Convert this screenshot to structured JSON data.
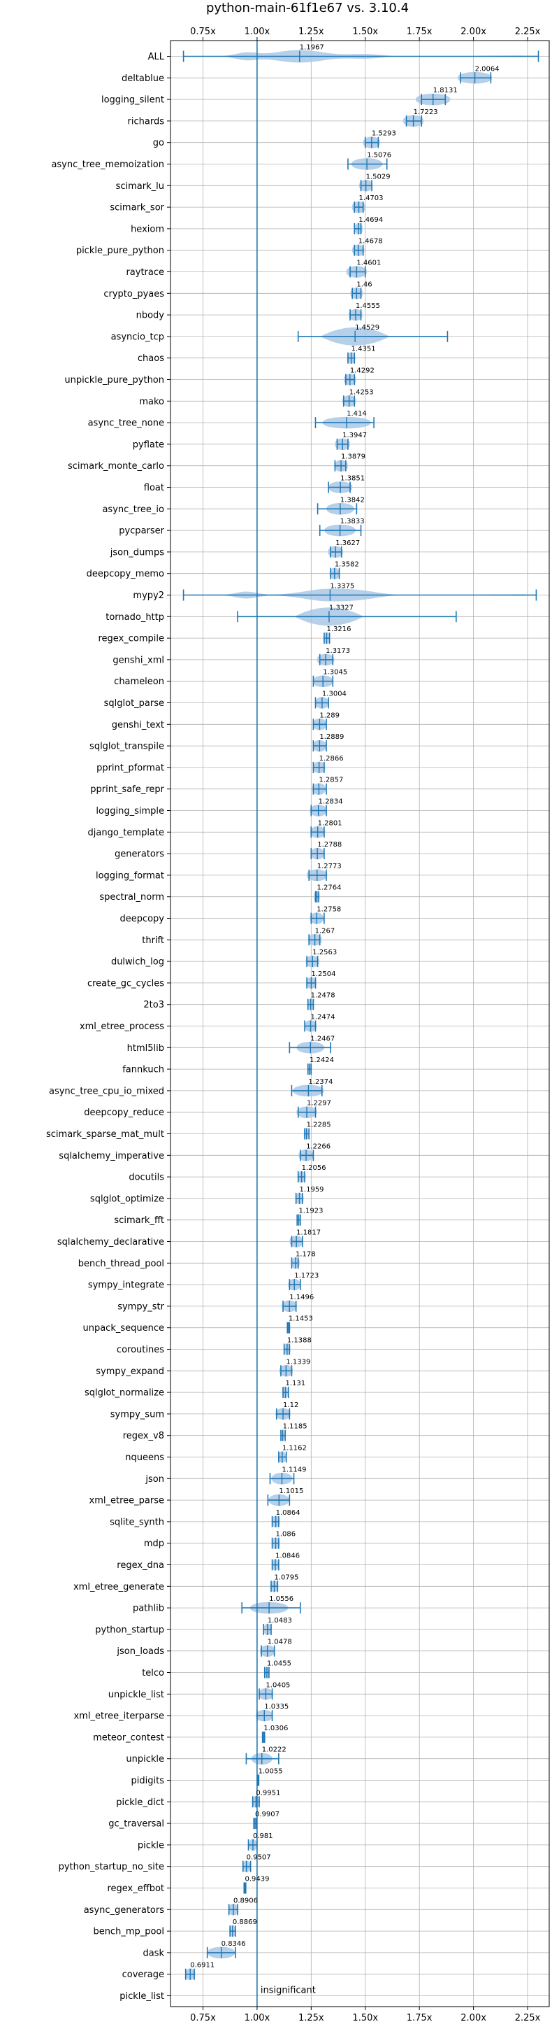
{
  "chart_data": {
    "type": "violin",
    "title": "python-main-61f1e67 vs. 3.10.4",
    "xlabel": "",
    "ylabel": "",
    "xlim": [
      0.6,
      2.35
    ],
    "xticks": [
      0.75,
      1.0,
      1.25,
      1.5,
      1.75,
      2.0,
      2.25
    ],
    "xtick_labels": [
      "0.75x",
      "1.00x",
      "1.25x",
      "1.50x",
      "1.75x",
      "2.00x",
      "2.25x"
    ],
    "reference_line": 1.0,
    "grid": true,
    "colors": {
      "line": "#1f77b4",
      "fill": "#a9c8e6",
      "grid": "#b0b0b0"
    },
    "rows": [
      {
        "name": "ALL",
        "value": 1.1967,
        "min": 0.66,
        "max": 2.3,
        "spread": "dist"
      },
      {
        "name": "deltablue",
        "value": 2.0064,
        "min": 1.94,
        "max": 2.08,
        "spread": 0.05
      },
      {
        "name": "logging_silent",
        "value": 1.8131,
        "min": 1.76,
        "max": 1.87,
        "spread": 0.05
      },
      {
        "name": "richards",
        "value": 1.7223,
        "min": 1.69,
        "max": 1.76,
        "spread": 0.03
      },
      {
        "name": "go",
        "value": 1.5293,
        "min": 1.5,
        "max": 1.56,
        "spread": 0.025
      },
      {
        "name": "async_tree_memoization",
        "value": 1.5076,
        "min": 1.42,
        "max": 1.6,
        "spread": 0.045
      },
      {
        "name": "scimark_lu",
        "value": 1.5029,
        "min": 1.48,
        "max": 1.53,
        "spread": 0.02
      },
      {
        "name": "scimark_sor",
        "value": 1.4703,
        "min": 1.45,
        "max": 1.49,
        "spread": 0.02
      },
      {
        "name": "hexiom",
        "value": 1.4694,
        "min": 1.45,
        "max": 1.48,
        "spread": 0.012
      },
      {
        "name": "pickle_pure_python",
        "value": 1.4678,
        "min": 1.45,
        "max": 1.49,
        "spread": 0.018
      },
      {
        "name": "raytrace",
        "value": 1.4601,
        "min": 1.43,
        "max": 1.5,
        "spread": 0.03
      },
      {
        "name": "crypto_pyaes",
        "value": 1.46,
        "min": 1.44,
        "max": 1.48,
        "spread": 0.018
      },
      {
        "name": "nbody",
        "value": 1.4555,
        "min": 1.43,
        "max": 1.48,
        "spread": 0.02
      },
      {
        "name": "asyncio_tcp",
        "value": 1.4529,
        "min": 1.19,
        "max": 1.88,
        "spread": "wide"
      },
      {
        "name": "chaos",
        "value": 1.4351,
        "min": 1.42,
        "max": 1.45,
        "spread": 0.012
      },
      {
        "name": "unpickle_pure_python",
        "value": 1.4292,
        "min": 1.41,
        "max": 1.45,
        "spread": 0.018
      },
      {
        "name": "mako",
        "value": 1.4253,
        "min": 1.4,
        "max": 1.45,
        "spread": 0.02
      },
      {
        "name": "async_tree_none",
        "value": 1.414,
        "min": 1.27,
        "max": 1.54,
        "spread": 0.07
      },
      {
        "name": "pyflate",
        "value": 1.3947,
        "min": 1.37,
        "max": 1.42,
        "spread": 0.022
      },
      {
        "name": "scimark_monte_carlo",
        "value": 1.3879,
        "min": 1.36,
        "max": 1.41,
        "spread": 0.02
      },
      {
        "name": "float",
        "value": 1.3851,
        "min": 1.33,
        "max": 1.43,
        "spread": 0.035
      },
      {
        "name": "async_tree_io",
        "value": 1.3842,
        "min": 1.28,
        "max": 1.46,
        "spread": 0.04
      },
      {
        "name": "pycparser",
        "value": 1.3833,
        "min": 1.29,
        "max": 1.48,
        "spread": 0.045
      },
      {
        "name": "json_dumps",
        "value": 1.3627,
        "min": 1.34,
        "max": 1.39,
        "spread": 0.022
      },
      {
        "name": "deepcopy_memo",
        "value": 1.3582,
        "min": 1.34,
        "max": 1.38,
        "spread": 0.015
      },
      {
        "name": "mypy2",
        "value": 1.3375,
        "min": 0.66,
        "max": 2.29,
        "spread": "dist"
      },
      {
        "name": "tornado_http",
        "value": 1.3327,
        "min": 0.91,
        "max": 1.92,
        "spread": "wide"
      },
      {
        "name": "regex_compile",
        "value": 1.3216,
        "min": 1.31,
        "max": 1.335,
        "spread": 0.01
      },
      {
        "name": "genshi_xml",
        "value": 1.3173,
        "min": 1.29,
        "max": 1.35,
        "spread": 0.025
      },
      {
        "name": "chameleon",
        "value": 1.3045,
        "min": 1.26,
        "max": 1.35,
        "spread": 0.03
      },
      {
        "name": "sqlglot_parse",
        "value": 1.3004,
        "min": 1.27,
        "max": 1.33,
        "spread": 0.02
      },
      {
        "name": "genshi_text",
        "value": 1.289,
        "min": 1.26,
        "max": 1.32,
        "spread": 0.02
      },
      {
        "name": "sqlglot_transpile",
        "value": 1.2889,
        "min": 1.26,
        "max": 1.32,
        "spread": 0.02
      },
      {
        "name": "pprint_pformat",
        "value": 1.2866,
        "min": 1.26,
        "max": 1.31,
        "spread": 0.018
      },
      {
        "name": "pprint_safe_repr",
        "value": 1.2857,
        "min": 1.26,
        "max": 1.32,
        "spread": 0.02
      },
      {
        "name": "logging_simple",
        "value": 1.2834,
        "min": 1.25,
        "max": 1.32,
        "spread": 0.025
      },
      {
        "name": "django_template",
        "value": 1.2801,
        "min": 1.25,
        "max": 1.31,
        "spread": 0.022
      },
      {
        "name": "generators",
        "value": 1.2788,
        "min": 1.25,
        "max": 1.31,
        "spread": 0.02
      },
      {
        "name": "logging_format",
        "value": 1.2773,
        "min": 1.24,
        "max": 1.32,
        "spread": 0.03
      },
      {
        "name": "spectral_norm",
        "value": 1.2764,
        "min": 1.27,
        "max": 1.285,
        "spread": 0.008
      },
      {
        "name": "deepcopy",
        "value": 1.2758,
        "min": 1.25,
        "max": 1.31,
        "spread": 0.02
      },
      {
        "name": "thrift",
        "value": 1.267,
        "min": 1.24,
        "max": 1.29,
        "spread": 0.02
      },
      {
        "name": "dulwich_log",
        "value": 1.2563,
        "min": 1.23,
        "max": 1.28,
        "spread": 0.02
      },
      {
        "name": "create_gc_cycles",
        "value": 1.2504,
        "min": 1.23,
        "max": 1.27,
        "spread": 0.015
      },
      {
        "name": "2to3",
        "value": 1.2478,
        "min": 1.235,
        "max": 1.26,
        "spread": 0.01
      },
      {
        "name": "xml_etree_process",
        "value": 1.2474,
        "min": 1.22,
        "max": 1.27,
        "spread": 0.018
      },
      {
        "name": "html5lib",
        "value": 1.2467,
        "min": 1.15,
        "max": 1.34,
        "spread": 0.04
      },
      {
        "name": "fannkuch",
        "value": 1.2424,
        "min": 1.235,
        "max": 1.25,
        "spread": 0.006
      },
      {
        "name": "async_tree_cpu_io_mixed",
        "value": 1.2374,
        "min": 1.16,
        "max": 1.3,
        "spread": 0.045
      },
      {
        "name": "deepcopy_reduce",
        "value": 1.2297,
        "min": 1.19,
        "max": 1.27,
        "spread": 0.03
      },
      {
        "name": "scimark_sparse_mat_mult",
        "value": 1.2285,
        "min": 1.22,
        "max": 1.24,
        "spread": 0.008
      },
      {
        "name": "sqlalchemy_imperative",
        "value": 1.2266,
        "min": 1.2,
        "max": 1.26,
        "spread": 0.022
      },
      {
        "name": "docutils",
        "value": 1.2056,
        "min": 1.19,
        "max": 1.22,
        "spread": 0.012
      },
      {
        "name": "sqlglot_optimize",
        "value": 1.1959,
        "min": 1.18,
        "max": 1.21,
        "spread": 0.012
      },
      {
        "name": "scimark_fft",
        "value": 1.1923,
        "min": 1.185,
        "max": 1.2,
        "spread": 0.006
      },
      {
        "name": "sqlalchemy_declarative",
        "value": 1.1817,
        "min": 1.16,
        "max": 1.21,
        "spread": 0.02
      },
      {
        "name": "bench_thread_pool",
        "value": 1.178,
        "min": 1.16,
        "max": 1.19,
        "spread": 0.012
      },
      {
        "name": "sympy_integrate",
        "value": 1.1723,
        "min": 1.15,
        "max": 1.2,
        "spread": 0.018
      },
      {
        "name": "sympy_str",
        "value": 1.1496,
        "min": 1.12,
        "max": 1.18,
        "spread": 0.022
      },
      {
        "name": "unpack_sequence",
        "value": 1.1453,
        "min": 1.14,
        "max": 1.15,
        "spread": 0.005
      },
      {
        "name": "coroutines",
        "value": 1.1388,
        "min": 1.125,
        "max": 1.15,
        "spread": 0.01
      },
      {
        "name": "sympy_expand",
        "value": 1.1339,
        "min": 1.11,
        "max": 1.16,
        "spread": 0.02
      },
      {
        "name": "sqlglot_normalize",
        "value": 1.131,
        "min": 1.12,
        "max": 1.145,
        "spread": 0.01
      },
      {
        "name": "sympy_sum",
        "value": 1.12,
        "min": 1.09,
        "max": 1.15,
        "spread": 0.022
      },
      {
        "name": "regex_v8",
        "value": 1.1185,
        "min": 1.11,
        "max": 1.13,
        "spread": 0.006
      },
      {
        "name": "nqueens",
        "value": 1.1162,
        "min": 1.1,
        "max": 1.135,
        "spread": 0.012
      },
      {
        "name": "json",
        "value": 1.1149,
        "min": 1.06,
        "max": 1.17,
        "spread": 0.03
      },
      {
        "name": "xml_etree_parse",
        "value": 1.1015,
        "min": 1.05,
        "max": 1.15,
        "spread": 0.03
      },
      {
        "name": "sqlite_synth",
        "value": 1.0864,
        "min": 1.07,
        "max": 1.1,
        "spread": 0.012
      },
      {
        "name": "mdp",
        "value": 1.086,
        "min": 1.07,
        "max": 1.1,
        "spread": 0.012
      },
      {
        "name": "regex_dna",
        "value": 1.0846,
        "min": 1.07,
        "max": 1.1,
        "spread": 0.01
      },
      {
        "name": "xml_etree_generate",
        "value": 1.0795,
        "min": 1.065,
        "max": 1.095,
        "spread": 0.012
      },
      {
        "name": "pathlib",
        "value": 1.0556,
        "min": 0.93,
        "max": 1.2,
        "spread": 0.055
      },
      {
        "name": "python_startup",
        "value": 1.0483,
        "min": 1.03,
        "max": 1.065,
        "spread": 0.012
      },
      {
        "name": "json_loads",
        "value": 1.0478,
        "min": 1.02,
        "max": 1.08,
        "spread": 0.022
      },
      {
        "name": "telco",
        "value": 1.0455,
        "min": 1.035,
        "max": 1.055,
        "spread": 0.008
      },
      {
        "name": "unpickle_list",
        "value": 1.0405,
        "min": 1.01,
        "max": 1.07,
        "spread": 0.022
      },
      {
        "name": "xml_etree_iterparse",
        "value": 1.0335,
        "min": 1.0,
        "max": 1.07,
        "spread": 0.025
      },
      {
        "name": "meteor_contest",
        "value": 1.0306,
        "min": 1.025,
        "max": 1.035,
        "spread": 0.004
      },
      {
        "name": "unpickle",
        "value": 1.0222,
        "min": 0.95,
        "max": 1.1,
        "spread": 0.03
      },
      {
        "name": "pidigits",
        "value": 1.0055,
        "min": 1.003,
        "max": 1.008,
        "spread": 0.002
      },
      {
        "name": "pickle_dict",
        "value": 0.9951,
        "min": 0.98,
        "max": 1.01,
        "spread": 0.012
      },
      {
        "name": "gc_traversal",
        "value": 0.9907,
        "min": 0.985,
        "max": 0.997,
        "spread": 0.005
      },
      {
        "name": "pickle",
        "value": 0.981,
        "min": 0.96,
        "max": 1.0,
        "spread": 0.012
      },
      {
        "name": "python_startup_no_site",
        "value": 0.9507,
        "min": 0.935,
        "max": 0.97,
        "spread": 0.012
      },
      {
        "name": "regex_effbot",
        "value": 0.9439,
        "min": 0.94,
        "max": 0.948,
        "spread": 0.004
      },
      {
        "name": "async_generators",
        "value": 0.8906,
        "min": 0.87,
        "max": 0.91,
        "spread": 0.015
      },
      {
        "name": "bench_mp_pool",
        "value": 0.8869,
        "min": 0.875,
        "max": 0.9,
        "spread": 0.01
      },
      {
        "name": "dask",
        "value": 0.8346,
        "min": 0.77,
        "max": 0.9,
        "spread": 0.04
      },
      {
        "name": "coverage",
        "value": 0.6911,
        "min": 0.67,
        "max": 0.71,
        "spread": 0.015
      },
      {
        "name": "pickle_list",
        "value": null,
        "note": "insignificant"
      }
    ]
  }
}
